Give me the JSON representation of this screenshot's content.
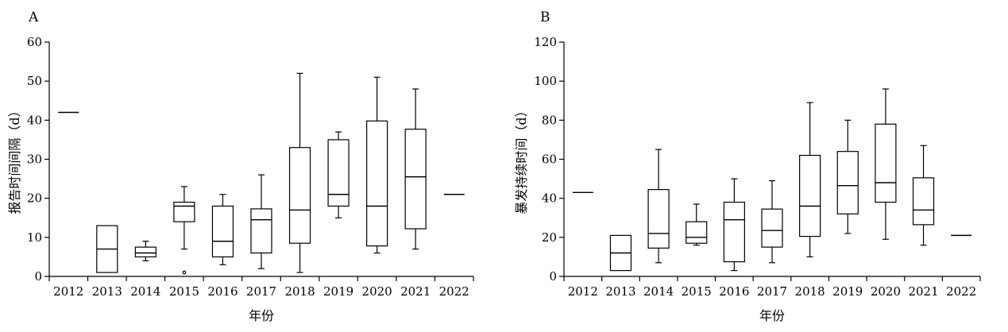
{
  "chart_data": [
    {
      "type": "box",
      "panel_label": "A",
      "xlabel": "年份",
      "ylabel": "报告时间间隔（d）",
      "ylim": [
        0,
        60
      ],
      "yticks": [
        0,
        10,
        20,
        30,
        40,
        50,
        60
      ],
      "categories": [
        "2012",
        "2013",
        "2014",
        "2015",
        "2016",
        "2017",
        "2018",
        "2019",
        "2020",
        "2021",
        "2022"
      ],
      "boxes": [
        {
          "min": 42,
          "q1": 42,
          "median": 42,
          "q3": 42,
          "max": 42
        },
        {
          "min": 1,
          "q1": 1,
          "median": 7,
          "q3": 13,
          "max": 13
        },
        {
          "min": 4,
          "q1": 5,
          "median": 6,
          "q3": 7.5,
          "max": 9
        },
        {
          "min": 7,
          "q1": 14,
          "median": 18,
          "q3": 19,
          "max": 23,
          "outliers": [
            1
          ]
        },
        {
          "min": 3,
          "q1": 5,
          "median": 9,
          "q3": 18,
          "max": 21
        },
        {
          "min": 2,
          "q1": 6,
          "median": 14.5,
          "q3": 17.3,
          "max": 26
        },
        {
          "min": 1,
          "q1": 8.5,
          "median": 17,
          "q3": 33,
          "max": 52
        },
        {
          "min": 15,
          "q1": 18,
          "median": 21,
          "q3": 35,
          "max": 37
        },
        {
          "min": 6,
          "q1": 7.8,
          "median": 18,
          "q3": 39.8,
          "max": 51
        },
        {
          "min": 7,
          "q1": 12.2,
          "median": 25.5,
          "q3": 37.7,
          "max": 48
        },
        {
          "min": 21,
          "q1": 21,
          "median": 21,
          "q3": 21,
          "max": 21
        }
      ]
    },
    {
      "type": "box",
      "panel_label": "B",
      "xlabel": "年份",
      "ylabel": "暴发持续时间（d）",
      "ylim": [
        0,
        120
      ],
      "yticks": [
        0,
        20,
        40,
        60,
        80,
        100,
        120
      ],
      "categories": [
        "2012",
        "2013",
        "2014",
        "2015",
        "2016",
        "2017",
        "2018",
        "2019",
        "2020",
        "2021",
        "2022"
      ],
      "boxes": [
        {
          "min": 43,
          "q1": 43,
          "median": 43,
          "q3": 43,
          "max": 43
        },
        {
          "min": 3,
          "q1": 3,
          "median": 12,
          "q3": 21,
          "max": 21
        },
        {
          "min": 7,
          "q1": 14.5,
          "median": 22,
          "q3": 44.5,
          "max": 65
        },
        {
          "min": 16,
          "q1": 17,
          "median": 20,
          "q3": 28,
          "max": 37
        },
        {
          "min": 3,
          "q1": 7.5,
          "median": 29,
          "q3": 38,
          "max": 50
        },
        {
          "min": 7,
          "q1": 15,
          "median": 23.5,
          "q3": 34.5,
          "max": 49
        },
        {
          "min": 10,
          "q1": 20.5,
          "median": 36,
          "q3": 62,
          "max": 89
        },
        {
          "min": 22,
          "q1": 32,
          "median": 46.5,
          "q3": 64,
          "max": 80
        },
        {
          "min": 19,
          "q1": 38,
          "median": 48,
          "q3": 78,
          "max": 96
        },
        {
          "min": 16,
          "q1": 26.5,
          "median": 34,
          "q3": 50.5,
          "max": 67
        },
        {
          "min": 21,
          "q1": 21,
          "median": 21,
          "q3": 21,
          "max": 21
        }
      ]
    }
  ]
}
